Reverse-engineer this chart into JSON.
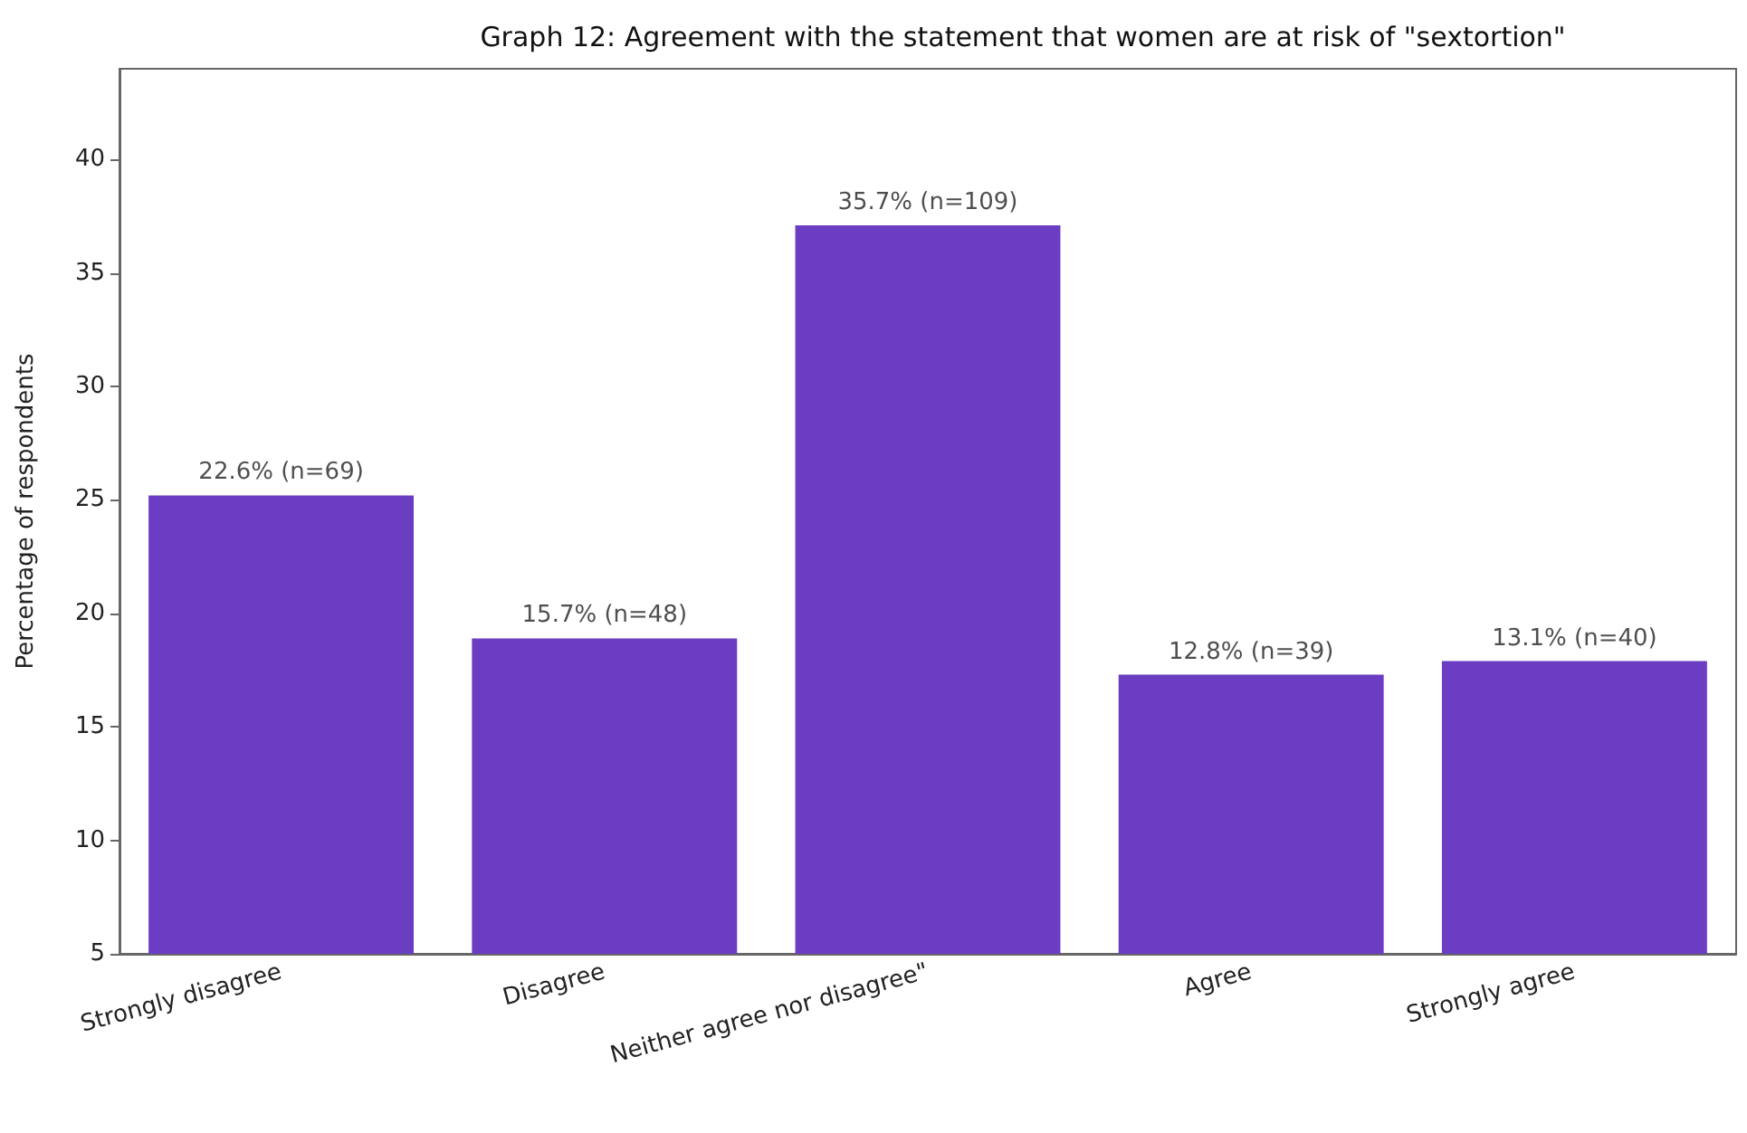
{
  "chart_data": {
    "type": "bar",
    "title": "Graph 12: Agreement with the statement that women are at risk of \"sextortion\"",
    "ylabel": "Percentage of respondents",
    "categories": [
      "Strongly disagree",
      "Disagree",
      "Neither agree nor disagree\"",
      "Agree",
      "Strongly agree"
    ],
    "values": [
      25.2,
      18.9,
      37.1,
      17.3,
      17.9
    ],
    "annotations": [
      {
        "text": "22.6% (n=69)",
        "x": "Strongly disagree",
        "y": 25.2
      },
      {
        "text": "15.7% (n=48)",
        "x": "Disagree",
        "y": 18.9
      },
      {
        "text": "35.7% (n=109)",
        "x": "Neither agree nor disagree\"",
        "y": 37.1
      },
      {
        "text": "12.8% (n=39)",
        "x": "Agree",
        "y": 17.3
      },
      {
        "text": "13.1% (n=40)",
        "x": "Strongly agree",
        "y": 17.9
      }
    ],
    "color": "#6a3dc2",
    "ylim": [
      5,
      44
    ],
    "yticks": [
      5,
      10,
      15,
      20,
      25,
      30,
      35,
      40
    ],
    "grid": false
  }
}
